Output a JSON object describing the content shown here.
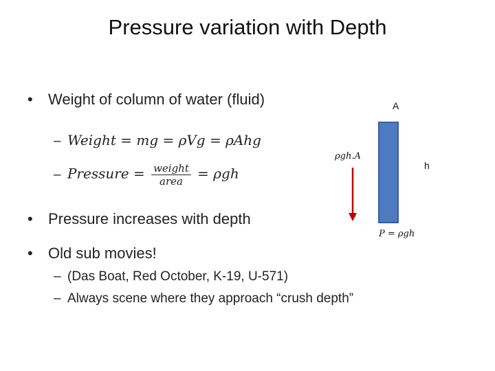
{
  "slide": {
    "title": "Pressure variation with Depth",
    "bullets": {
      "b1": "Weight of column of water (fluid)",
      "b1_sub1": {
        "lhs": "Weight = mg = ρVg = ρAhg"
      },
      "b1_sub2": {
        "lhs": "Pressure =",
        "num": "weight",
        "den": "area",
        "rhs": "= ρgh"
      },
      "b2": "Pressure increases with depth",
      "b3": "Old sub movies!",
      "b3_sub1": "(Das Boat, Red October, K-19, U-571)",
      "b3_sub2": "Always scene where they approach “crush depth”"
    },
    "diagram": {
      "area_label": "A",
      "force_label": "ρgh.A",
      "height_label": "h",
      "pressure_label": "P = ρgh",
      "column_color": "#4f7ac0",
      "arrow_color": "#c00000"
    }
  }
}
